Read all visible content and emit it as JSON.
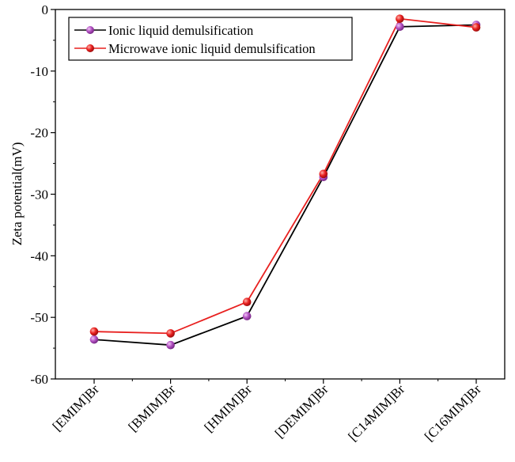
{
  "chart_data": {
    "type": "line",
    "title": "",
    "xlabel": "",
    "ylabel": "Zeta potential(mV)",
    "categories": [
      "[EMIM]Br",
      "[BMIM]Br",
      "[HMIM]Br",
      "[DEMIM]Br",
      "[C14MIM]Br",
      "[C16MIM]Br"
    ],
    "ylim": [
      -60,
      0
    ],
    "yticks": [
      "0",
      "-10",
      "-20",
      "-30",
      "-40",
      "-50",
      "-60"
    ],
    "ytick_values": [
      0,
      -10,
      -20,
      -30,
      -40,
      -50,
      -60
    ],
    "grid": false,
    "legend_position": "top-left",
    "series": [
      {
        "name": "Ionic liquid demulsification",
        "values": [
          -53.6,
          -54.5,
          -49.8,
          -27.2,
          -2.8,
          -2.5
        ],
        "line_color": "#000000",
        "marker_color": "#b04fc0"
      },
      {
        "name": "Microwave ionic liquid demulsification",
        "values": [
          -52.3,
          -52.6,
          -47.5,
          -26.7,
          -1.5,
          -2.9
        ],
        "line_color": "#e8201f",
        "marker_color": "#e8201f"
      }
    ]
  }
}
